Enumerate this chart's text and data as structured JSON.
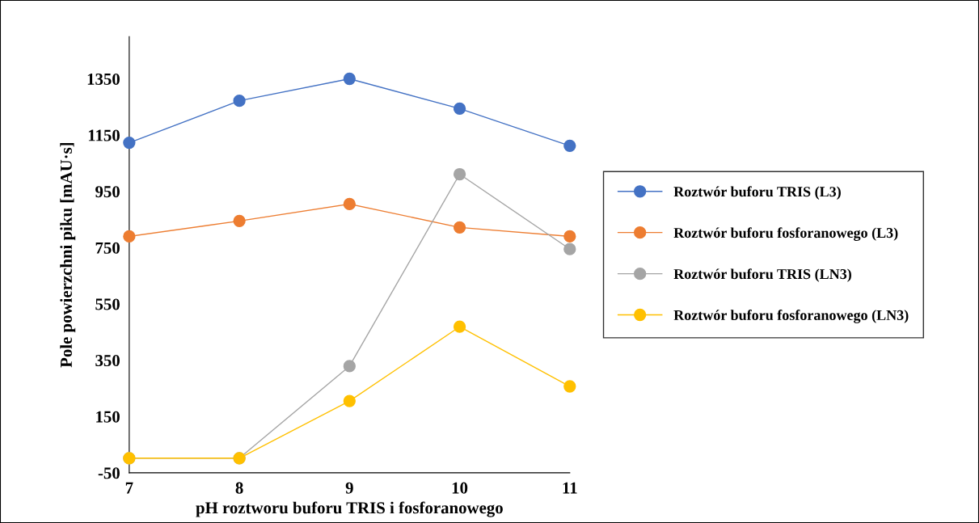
{
  "chart_data": {
    "type": "line",
    "xlabel": "pH roztworu buforu TRIS i fosforanowego",
    "ylabel": "Pole powierzchni piku [mAU·s]",
    "x": [
      7,
      8,
      9,
      10,
      11
    ],
    "xlim": [
      7,
      11
    ],
    "xticks": [
      7,
      8,
      9,
      10,
      11
    ],
    "ylim": [
      -50,
      1500
    ],
    "yticks": [
      -50,
      150,
      350,
      550,
      750,
      950,
      1150,
      1350
    ],
    "marker": "circle",
    "legend": "right",
    "grid": false,
    "series": [
      {
        "name": "Roztwór buforu TRIS (L3)",
        "color": "#4472c4",
        "values": [
          1123,
          1272,
          1350,
          1244,
          1112
        ]
      },
      {
        "name": "Roztwór buforu fosforanowego (L3)",
        "color": "#ed7d31",
        "values": [
          790,
          845,
          905,
          822,
          790
        ]
      },
      {
        "name": "Roztwór buforu TRIS (LN3)",
        "color": "#a5a5a5",
        "values": [
          2,
          2,
          329,
          1011,
          745
        ]
      },
      {
        "name": "Roztwór buforu fosforanowego (LN3)",
        "color": "#ffc000",
        "values": [
          2,
          2,
          205,
          469,
          257
        ]
      }
    ]
  }
}
